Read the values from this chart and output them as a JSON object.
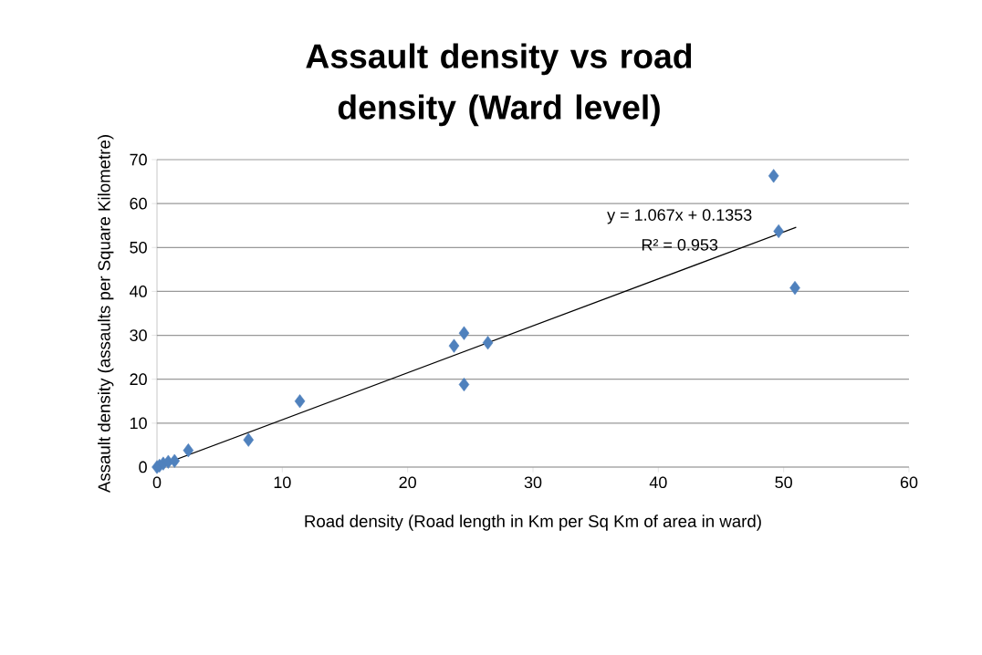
{
  "chart_data": {
    "type": "scatter",
    "title": "Assault density vs road density (Ward level)",
    "xlabel": "Road density (Road length in Km per Sq Km of area in  ward)",
    "ylabel": "Assault density (assaults per Square Kilometre)",
    "xlim": [
      0,
      60
    ],
    "xticks": [
      0,
      10,
      20,
      30,
      40,
      50,
      60
    ],
    "ylim": [
      0,
      70
    ],
    "yticks": [
      0,
      10,
      20,
      30,
      40,
      50,
      60,
      70
    ],
    "grid": "y",
    "marker": "diamond",
    "series": [
      {
        "color": "#4f81bd",
        "x": [
          0,
          0.1,
          0.2,
          0.5,
          0.9,
          1.4,
          2.5,
          7.3,
          11.4,
          23.7,
          24.5,
          24.5,
          26.4,
          49.2,
          49.6,
          50.9
        ],
        "values": [
          0,
          null,
          0.3,
          0.8,
          1.2,
          1.4,
          3.8,
          6.2,
          15.0,
          27.6,
          30.5,
          18.8,
          28.3,
          66.3,
          53.7,
          40.8
        ]
      },
      {
        "type": "line",
        "color": "#000000",
        "marker": "none",
        "line_style": "solid",
        "x": [
          0,
          51
        ],
        "values": [
          0.1,
          54.6
        ]
      }
    ],
    "annotations": [
      "y = 1.067x + 0.1353",
      "R² = 0.953"
    ]
  }
}
